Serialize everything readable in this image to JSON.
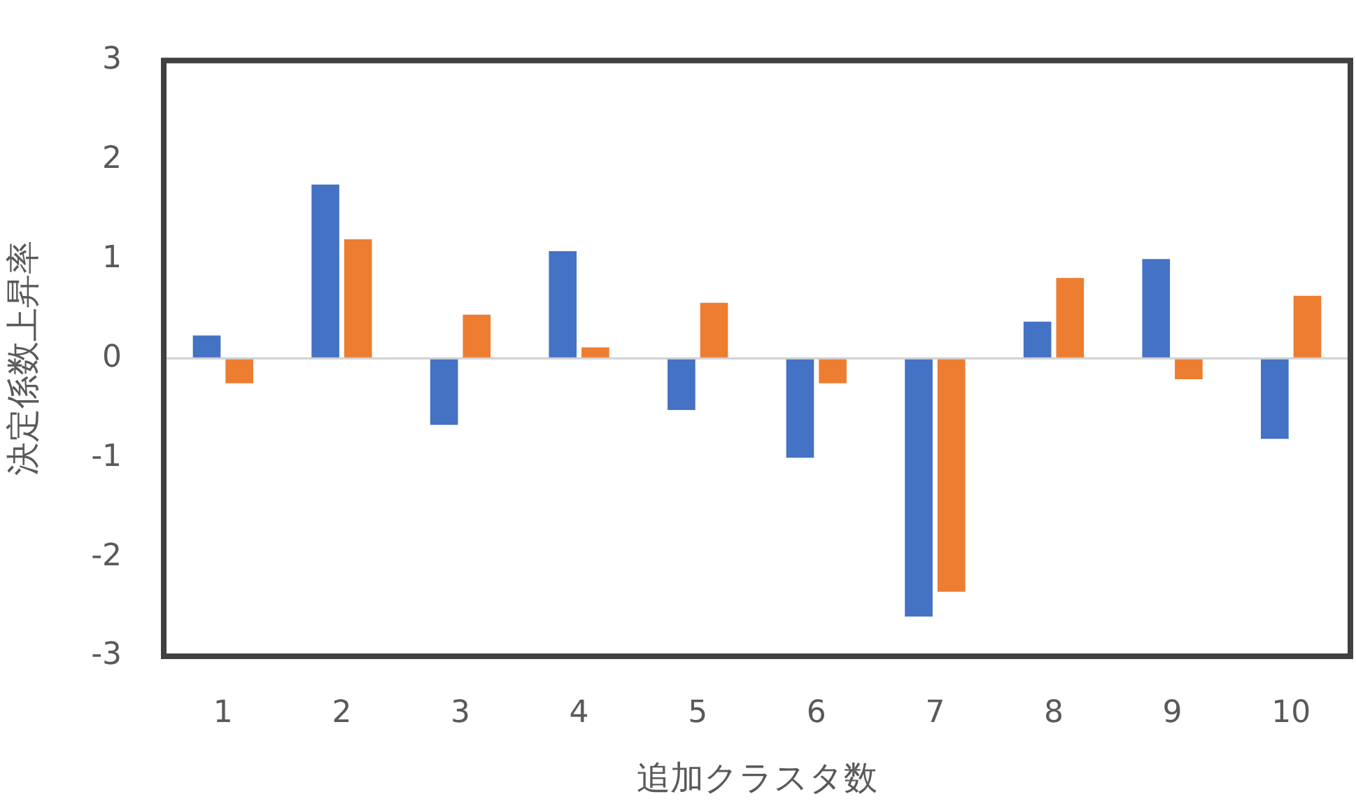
{
  "chart_data": {
    "type": "bar",
    "xlabel": "追加クラスタ数",
    "ylabel": "決定係数上昇率",
    "categories": [
      "1",
      "2",
      "3",
      "4",
      "5",
      "6",
      "7",
      "8",
      "9",
      "10"
    ],
    "series": [
      {
        "color": "#4472c4",
        "values": [
          0.23,
          1.75,
          -0.67,
          1.08,
          -0.52,
          -1.0,
          -2.6,
          0.37,
          1.0,
          -0.81
        ]
      },
      {
        "color": "#ed7d31",
        "values": [
          -0.25,
          1.2,
          0.44,
          0.11,
          0.56,
          -0.25,
          -2.35,
          0.81,
          -0.21,
          0.63
        ]
      }
    ],
    "ref_lines": [
      {
        "axis": "y",
        "value": 0,
        "color": "#d0d0d0"
      }
    ],
    "ylim": [
      -3,
      3
    ],
    "yticks": [
      -3,
      -2,
      -1,
      0,
      1,
      2,
      3
    ],
    "grid": false,
    "legend": false
  }
}
